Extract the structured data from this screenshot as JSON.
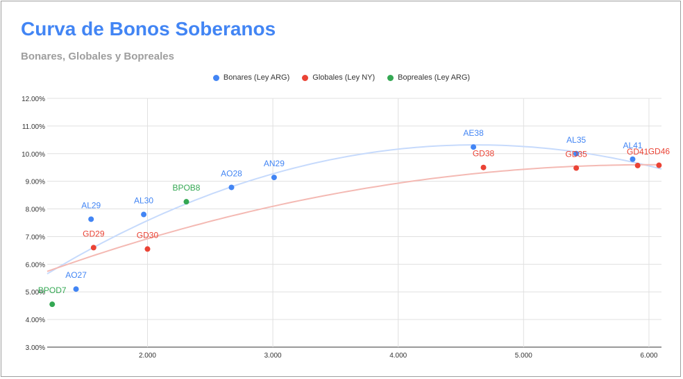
{
  "chart_data": {
    "type": "scatter",
    "title": "Curva de Bonos Soberanos",
    "subtitle": "Bonares, Globales y Bopreales",
    "xlabel": "",
    "ylabel": "",
    "xlim": [
      1.2,
      6.1
    ],
    "ylim": [
      0.03,
      0.12
    ],
    "x_ticks": [
      "2.000",
      "3.000",
      "4.000",
      "5.000",
      "6.000"
    ],
    "y_ticks": [
      "3.00%",
      "4.00%",
      "5.00%",
      "6.00%",
      "7.00%",
      "8.00%",
      "9.00%",
      "10.00%",
      "11.00%",
      "12.00%"
    ],
    "grid": true,
    "legend_position": "top",
    "series": [
      {
        "name": "Bonares (Ley ARG)",
        "color": "#4285f4",
        "trend_color": "#c6dafc",
        "points": [
          {
            "label": "AO27",
            "x": 1.43,
            "y": 0.051
          },
          {
            "label": "AL29",
            "x": 1.55,
            "y": 0.0763
          },
          {
            "label": "AL30",
            "x": 1.97,
            "y": 0.078
          },
          {
            "label": "AO28",
            "x": 2.67,
            "y": 0.0878
          },
          {
            "label": "AN29",
            "x": 3.01,
            "y": 0.0914
          },
          {
            "label": "AE38",
            "x": 4.6,
            "y": 0.1024
          },
          {
            "label": "AL35",
            "x": 5.42,
            "y": 0.1
          },
          {
            "label": "AL41",
            "x": 5.87,
            "y": 0.098
          }
        ]
      },
      {
        "name": "Globales (Ley NY)",
        "color": "#ea4335",
        "trend_color": "#f4b9b3",
        "points": [
          {
            "label": "GD29",
            "x": 1.57,
            "y": 0.066
          },
          {
            "label": "GD30",
            "x": 2.0,
            "y": 0.0655
          },
          {
            "label": "GD38",
            "x": 4.68,
            "y": 0.095
          },
          {
            "label": "GD35",
            "x": 5.42,
            "y": 0.0948
          },
          {
            "label": "GD41",
            "x": 5.91,
            "y": 0.0957
          },
          {
            "label": "GD46",
            "x": 6.08,
            "y": 0.0958
          }
        ]
      },
      {
        "name": "Bopreales (Ley ARG)",
        "color": "#34a853",
        "points": [
          {
            "label": "BPOD7",
            "x": 1.24,
            "y": 0.0455
          },
          {
            "label": "BPOB8",
            "x": 2.31,
            "y": 0.0826
          }
        ]
      }
    ]
  }
}
